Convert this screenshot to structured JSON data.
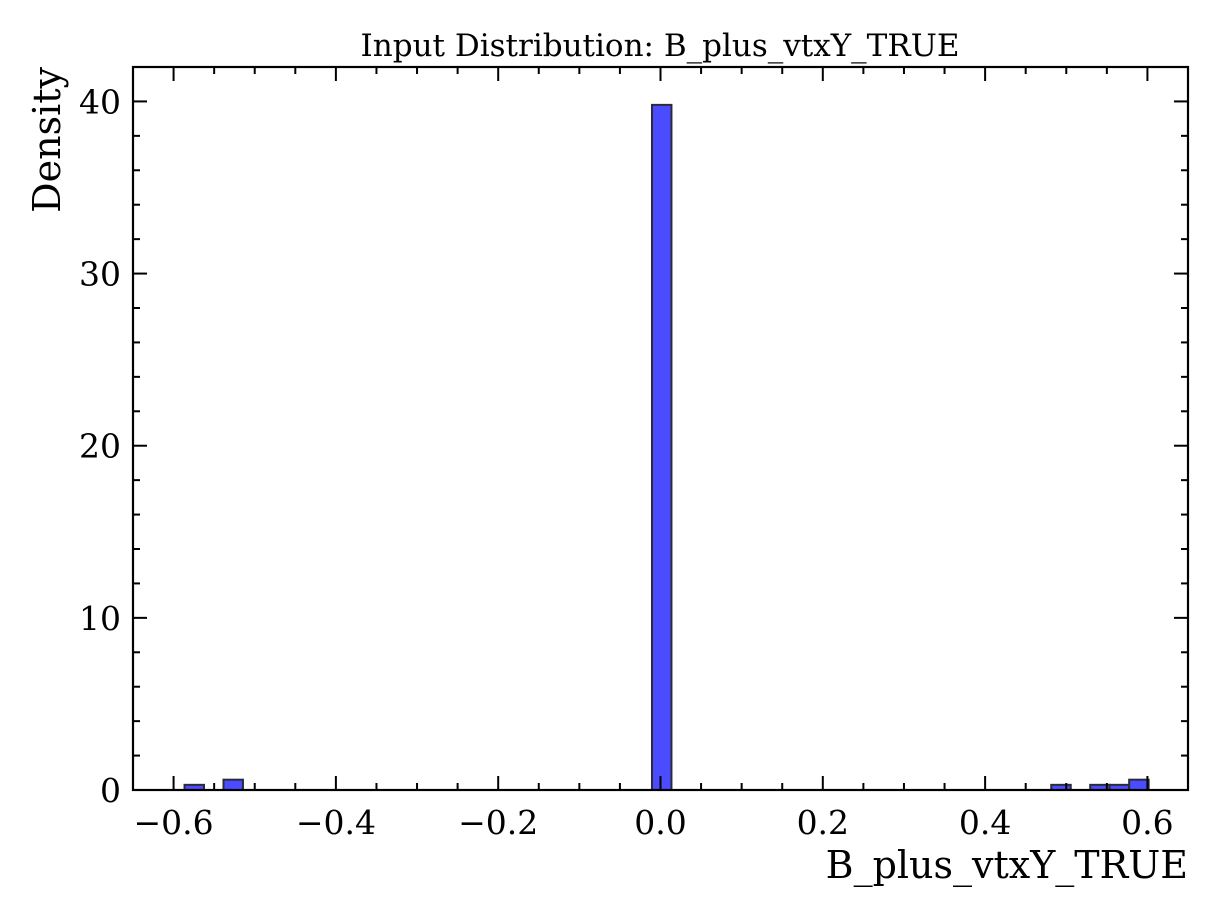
{
  "chart_data": {
    "type": "bar",
    "title": "Input Distribution: B_plus_vtxY_TRUE",
    "xlabel": "B_plus_vtxY_TRUE",
    "ylabel": "Density",
    "xlim": [
      -0.65,
      0.65
    ],
    "ylim": [
      0,
      42
    ],
    "xticks": [
      -0.6,
      -0.4,
      -0.2,
      0.0,
      0.2,
      0.4,
      0.6
    ],
    "xtick_labels": [
      "−0.6",
      "−0.4",
      "−0.2",
      "0.0",
      "0.2",
      "0.4",
      "0.6"
    ],
    "xminor_step": 0.05,
    "yticks": [
      0,
      10,
      20,
      30,
      40
    ],
    "ytick_labels": [
      "0",
      "10",
      "20",
      "30",
      "40"
    ],
    "yminor_step": 2,
    "bar_color": "#4b4bff",
    "edge_color": "#2b2b3a",
    "grid": false,
    "bins": [
      {
        "x0": -0.5865,
        "x1": -0.5625,
        "value": 0.3
      },
      {
        "x0": -0.5385,
        "x1": -0.5145,
        "value": 0.6
      },
      {
        "x0": -0.0105,
        "x1": 0.0135,
        "value": 39.8
      },
      {
        "x0": 0.4815,
        "x1": 0.5055,
        "value": 0.3
      },
      {
        "x0": 0.5295,
        "x1": 0.5535,
        "value": 0.3
      },
      {
        "x0": 0.5535,
        "x1": 0.5775,
        "value": 0.3
      },
      {
        "x0": 0.5775,
        "x1": 0.6015,
        "value": 0.6
      }
    ]
  }
}
